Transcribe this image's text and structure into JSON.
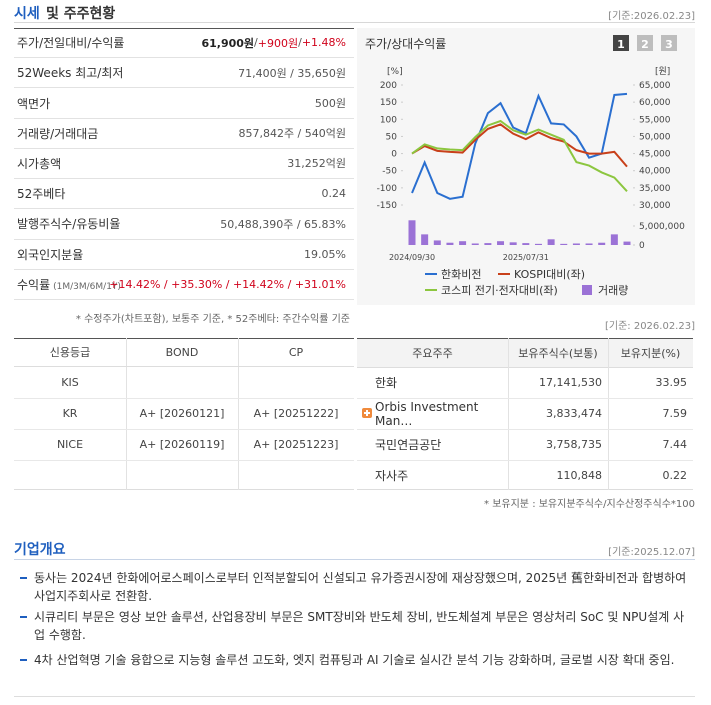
{
  "header": {
    "title_a": "시세",
    "title_b": "및 주주현황",
    "date": "[기준:2026.02.23]"
  },
  "price_table": {
    "rows": [
      {
        "label": "주가/전일대비/수익률",
        "value": [
          {
            "text": "61,900원",
            "color": "#222222"
          },
          {
            "text": " / "
          },
          {
            "text": "+900원",
            "color": "#d0021b"
          },
          {
            "text": " / "
          },
          {
            "text": "+1.48%",
            "color": "#d0021b"
          }
        ]
      },
      {
        "label": "52Weeks 최고/최저",
        "value": [
          {
            "text": "71,400원 / 35,650원"
          }
        ]
      },
      {
        "label": "액면가",
        "value": [
          {
            "text": "500원"
          }
        ]
      },
      {
        "label": "거래량/거래대금",
        "value": [
          {
            "text": "857,842주 / 540억원"
          }
        ]
      },
      {
        "label": "시가총액",
        "value": [
          {
            "text": "31,252억원"
          }
        ]
      },
      {
        "label": "52주베타",
        "value": [
          {
            "text": "0.24"
          }
        ]
      },
      {
        "label": "발행주식수/유동비율",
        "value": [
          {
            "text": "50,488,390주 / 65.83%"
          }
        ]
      },
      {
        "label": "외국인지분율",
        "value": [
          {
            "text": "19.05%"
          }
        ]
      },
      {
        "label": "수익률",
        "sub": "(1M/3M/6M/1Y)",
        "value": [
          {
            "text": "+14.42% / +35.30% / +14.42% / +31.01%",
            "color": "#d0021b"
          }
        ]
      }
    ]
  },
  "chart_data": {
    "type": "line",
    "title": "주가/상대수익률",
    "buttons": [
      "1",
      "2",
      "3"
    ],
    "active_button": 0,
    "ylabel": "[%]",
    "y2label": "[원]",
    "categories": [
      "2024/09/30",
      null,
      null,
      null,
      null,
      null,
      null,
      null,
      null,
      "2025/07/31",
      null,
      null,
      null,
      null,
      null,
      null,
      null,
      null
    ],
    "ylim": [
      -150,
      200
    ],
    "yticks": [
      200,
      150,
      100,
      50,
      0,
      -50,
      -100,
      -150
    ],
    "y2lim": [
      30000,
      65000
    ],
    "y2ticks": [
      {
        "value": 65000,
        "label": "65,000"
      },
      {
        "value": 60000,
        "label": "60,000"
      },
      {
        "value": 55000,
        "label": "55,000"
      },
      {
        "value": 50000,
        "label": "50,000"
      },
      {
        "value": 45000,
        "label": "45,000"
      },
      {
        "value": 40000,
        "label": "40,000"
      },
      {
        "value": 35000,
        "label": "35,000"
      },
      {
        "value": 30000,
        "label": "30,000"
      }
    ],
    "y3lim": [
      0,
      5000000
    ],
    "y3ticks": [
      {
        "value": 5000000,
        "label": "5,000,000"
      },
      0
    ],
    "series": [
      {
        "name": "한화비전",
        "color": "#2a6fd0",
        "axis": "y2",
        "type": "line",
        "values": [
          33500,
          42400,
          33500,
          31800,
          32400,
          47900,
          56800,
          59700,
          52600,
          50900,
          61800,
          53800,
          53500,
          50000,
          43800,
          45000,
          62100,
          62400
        ]
      },
      {
        "name": "KOSPI대비(좌)",
        "color": "#c8401a",
        "type": "line",
        "values": [
          0,
          22,
          8,
          5,
          3,
          40,
          72,
          85,
          58,
          42,
          62,
          45,
          35,
          10,
          0,
          0,
          5,
          -38
        ]
      },
      {
        "name": "코스피 전기·전자대비(좌)",
        "color": "#8cc63f",
        "type": "line",
        "values": [
          0,
          27,
          15,
          12,
          10,
          48,
          82,
          95,
          68,
          55,
          70,
          55,
          40,
          -25,
          -35,
          -55,
          -70,
          -110
        ]
      },
      {
        "name": "거래량",
        "color": "#9b72d6",
        "axis": "y3",
        "type": "bar",
        "values": [
          6500000,
          2800000,
          1200000,
          600000,
          1000000,
          400000,
          500000,
          1000000,
          700000,
          500000,
          300000,
          1500000,
          300000,
          400000,
          400000,
          600000,
          2800000,
          900000
        ]
      }
    ]
  },
  "price_note": "* 수정주가(차트포함), 보통주 기준, * 52주베타: 주간수익률 기준",
  "chart_note": "[기준: 2026.02.23]",
  "credit_table": {
    "header": [
      "신용등급",
      "BOND",
      "CP"
    ],
    "rows": [
      [
        "KIS",
        null,
        null
      ],
      [
        "KR",
        "A+  [20260121]",
        "A+  [20251222]"
      ],
      [
        "NICE",
        "A+  [20260119]",
        "A+  [20251223]"
      ]
    ]
  },
  "holder_table": {
    "header": [
      "주요주주",
      "보유주식수(보통)",
      "보유지분(%)"
    ],
    "rows": [
      {
        "name": "한화",
        "shares": "17,141,530",
        "pct": "33.95"
      },
      {
        "name": "Orbis Investment Man…",
        "shares": "3,833,474",
        "pct": "7.59",
        "expandable": true
      },
      {
        "name": "국민연금공단",
        "shares": "3,758,735",
        "pct": "7.44"
      },
      {
        "name": "자사주",
        "shares": "110,848",
        "pct": "0.22"
      }
    ]
  },
  "holder_note": "* 보유지분 : 보유지분주식수/지수산정주식수*100",
  "overview": {
    "title": "기업개요",
    "date": "[기준:2025.12.07]",
    "items": [
      "동사는 2024년 한화에어로스페이스로부터 인적분할되어 신설되고 유가증권시장에 재상장했으며, 2025년 舊한화비전과 합병하여 사업지주회사로 전환함.",
      "시큐리티 부문은 영상 보안 솔루션, 산업용장비 부문은 SMT장비와 반도체 장비, 반도체설계 부문은 영상처리 SoC 및 NPU설계 사업 수행함.",
      "4차 산업혁명 기술 융합으로 지능형 솔루션 고도화, 엣지 컴퓨팅과 AI 기술로 실시간 분석 기능 강화하며, 글로벌 시장 확대 중임."
    ]
  }
}
